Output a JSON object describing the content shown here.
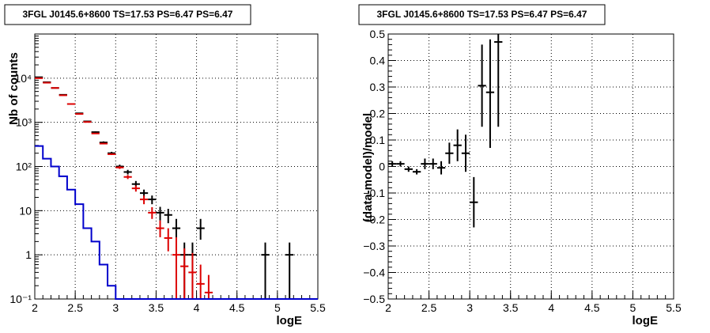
{
  "chart_data": [
    {
      "type": "scatter",
      "title": "3FGL J0145.6+8600 TS=17.53 PS=6.47 PS=6.47",
      "xlabel": "logE",
      "ylabel": "Nb of counts",
      "xlim": [
        2,
        5.5
      ],
      "ylim": [
        0.1,
        100000
      ],
      "yscale": "log",
      "grid": true,
      "xticks": [
        "2",
        "2.5",
        "3",
        "3.5",
        "4",
        "4.5",
        "5",
        "5.5"
      ],
      "ytick_values": [
        0.1,
        1,
        10,
        100,
        1000,
        10000
      ],
      "yticks": [
        "10⁻¹",
        "1",
        "10",
        "10²",
        "10³",
        "10⁴"
      ],
      "colors": {
        "data": "#000000",
        "model": "#dd0000",
        "source": "#0000cc"
      },
      "series": [
        {
          "key": "data",
          "style": "errorbar",
          "x": [
            2.05,
            2.15,
            2.25,
            2.35,
            2.45,
            2.55,
            2.65,
            2.75,
            2.85,
            2.95,
            3.05,
            3.15,
            3.25,
            3.35,
            3.45,
            3.55,
            3.65,
            3.75,
            3.85,
            3.95,
            4.05,
            4.85,
            5.15
          ],
          "y": [
            10500,
            8100,
            6000,
            4200,
            2600,
            1600,
            1050,
            600,
            350,
            200,
            100,
            75,
            40,
            25,
            18,
            9,
            8,
            4,
            1,
            1,
            4,
            1,
            1
          ],
          "ylo": [
            10300,
            7950,
            5850,
            4100,
            2550,
            1560,
            1020,
            575,
            330,
            185,
            90,
            66,
            34,
            20,
            14,
            6,
            5.2,
            2.2,
            0.1,
            0.1,
            2.2,
            0.1,
            0.1
          ],
          "yhi": [
            10700,
            8250,
            6150,
            4300,
            2650,
            1640,
            1080,
            625,
            370,
            215,
            110,
            84,
            47,
            30,
            22,
            12.2,
            11,
            6.5,
            1.9,
            1.9,
            6.5,
            1.9,
            1.9
          ]
        },
        {
          "key": "model",
          "style": "errorbar",
          "x": [
            2.05,
            2.15,
            2.25,
            2.35,
            2.45,
            2.55,
            2.65,
            2.75,
            2.85,
            2.95,
            3.05,
            3.15,
            3.25,
            3.35,
            3.45,
            3.55,
            3.65,
            3.75,
            3.85,
            3.95,
            4.05,
            4.15
          ],
          "y": [
            10000,
            7900,
            6000,
            4100,
            2600,
            1550,
            1020,
            560,
            330,
            190,
            95,
            58,
            32,
            18,
            9,
            4,
            2.4,
            1,
            0.55,
            0.4,
            0.22,
            0.14
          ],
          "ylo": [
            9900,
            7800,
            5900,
            4050,
            2570,
            1530,
            1000,
            545,
            320,
            182,
            88,
            52,
            27,
            14,
            6.5,
            2.5,
            1.2,
            0.1,
            0.1,
            0.1,
            0.1,
            0.1
          ],
          "yhi": [
            10100,
            8000,
            6100,
            4150,
            2630,
            1570,
            1040,
            575,
            340,
            198,
            102,
            64,
            37,
            22,
            12,
            6,
            4,
            2.5,
            1.4,
            1.1,
            0.6,
            0.35
          ]
        },
        {
          "key": "source",
          "style": "step",
          "bin_edges": [
            2.0,
            2.1,
            2.2,
            2.3,
            2.4,
            2.5,
            2.6,
            2.7,
            2.8,
            2.9,
            3.0,
            3.1,
            5.5
          ],
          "values": [
            290,
            150,
            100,
            60,
            30,
            14,
            4,
            2,
            0.6,
            0.2,
            0.08,
            0.08
          ]
        }
      ]
    },
    {
      "type": "scatter",
      "title": "3FGL J0145.6+8600 TS=17.53 PS=6.47 PS=6.47",
      "xlabel": "logE",
      "ylabel": "(data-model)/model",
      "xlim": [
        2,
        5.5
      ],
      "ylim": [
        -0.5,
        0.5
      ],
      "grid": true,
      "xticks": [
        "2",
        "2.5",
        "3",
        "3.5",
        "4",
        "4.5",
        "5",
        "5.5"
      ],
      "ytick_values": [
        -0.5,
        -0.4,
        -0.3,
        -0.2,
        -0.1,
        0,
        0.1,
        0.2,
        0.3,
        0.4,
        0.5
      ],
      "yticks": [
        "−0.5",
        "−0.4",
        "−0.3",
        "−0.2",
        "−0.1",
        "0",
        "0.1",
        "0.2",
        "0.3",
        "0.4",
        "0.5"
      ],
      "series": [
        {
          "key": "residual",
          "style": "errorbar",
          "x": [
            2.05,
            2.15,
            2.25,
            2.35,
            2.45,
            2.55,
            2.65,
            2.75,
            2.85,
            2.95,
            3.05,
            3.15,
            3.25,
            3.35
          ],
          "y": [
            0.01,
            0.01,
            -0.01,
            -0.02,
            0.01,
            0.01,
            -0.005,
            0.05,
            0.08,
            0.05,
            -0.135,
            0.305,
            0.28,
            0.47
          ],
          "ylo": [
            0.0,
            0.0,
            -0.02,
            -0.03,
            -0.01,
            -0.01,
            -0.03,
            0.01,
            0.02,
            -0.02,
            -0.23,
            0.15,
            0.07,
            0.15
          ],
          "yhi": [
            0.02,
            0.02,
            0.0,
            -0.01,
            0.03,
            0.03,
            0.02,
            0.09,
            0.14,
            0.12,
            -0.04,
            0.46,
            0.48,
            0.5
          ]
        }
      ]
    }
  ]
}
